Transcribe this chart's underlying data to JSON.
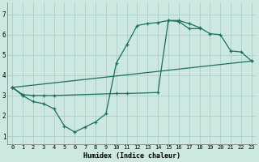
{
  "xlabel": "Humidex (Indice chaleur)",
  "bg_color": "#cce8e0",
  "grid_color": "#aacfc8",
  "line_color": "#1a6e62",
  "xlim": [
    -0.5,
    23.5
  ],
  "ylim": [
    0.6,
    7.6
  ],
  "xticks": [
    0,
    1,
    2,
    3,
    4,
    5,
    6,
    7,
    8,
    9,
    10,
    11,
    12,
    13,
    14,
    15,
    16,
    17,
    18,
    19,
    20,
    21,
    22,
    23
  ],
  "yticks": [
    1,
    2,
    3,
    4,
    5,
    6,
    7
  ],
  "curve1": {
    "x": [
      0,
      1,
      2,
      3,
      4,
      5,
      6,
      7,
      8,
      9,
      10,
      11,
      12,
      13,
      14,
      15,
      16,
      17,
      18
    ],
    "y": [
      3.4,
      3.0,
      2.7,
      2.6,
      2.35,
      1.5,
      1.2,
      1.45,
      1.7,
      2.1,
      4.6,
      5.5,
      6.45,
      6.55,
      6.6,
      6.7,
      6.65,
      6.3,
      6.3
    ]
  },
  "curve2": {
    "x": [
      0,
      1,
      2,
      3,
      4,
      10,
      11,
      14,
      15,
      16,
      17,
      18,
      19,
      20,
      21,
      22,
      23
    ],
    "y": [
      3.4,
      3.05,
      3.0,
      3.0,
      3.0,
      3.1,
      3.1,
      3.15,
      6.7,
      6.7,
      6.55,
      6.35,
      6.05,
      6.0,
      5.2,
      5.15,
      4.7
    ]
  },
  "curve3": {
    "x": [
      0,
      23
    ],
    "y": [
      3.4,
      4.7
    ]
  }
}
